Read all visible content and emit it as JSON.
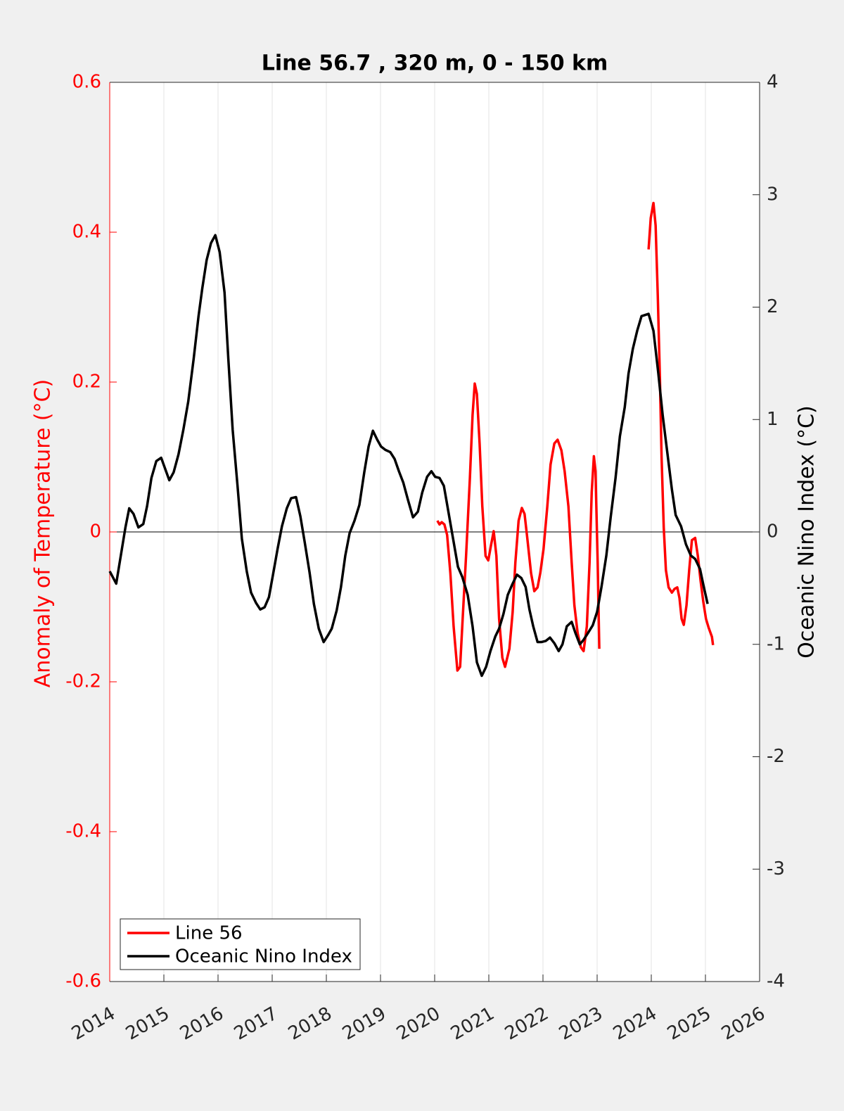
{
  "chart_data": {
    "type": "line",
    "title": "Line 56.7 , 320 m, 0 - 150 km",
    "ylabel": "Anomaly of Temperature (°C)",
    "y2label": "Oceanic Nino Index (°C)",
    "xlim": [
      2014,
      2026
    ],
    "xticks": [
      2014,
      2015,
      2016,
      2017,
      2018,
      2019,
      2020,
      2021,
      2022,
      2023,
      2024,
      2025,
      2026
    ],
    "ylim": [
      -0.6,
      0.6
    ],
    "yticks": [
      -0.6,
      -0.4,
      -0.2,
      0,
      0.2,
      0.4,
      0.6
    ],
    "y2lim": [
      -4,
      4
    ],
    "y2ticks": [
      -4,
      -3,
      -2,
      -1,
      0,
      1,
      2,
      3,
      4
    ],
    "grid": true,
    "legend": "lower left",
    "ylabel_color": "#ff0000",
    "series": [
      {
        "name": "Line 56",
        "color": "#ff0000",
        "x": [
          2020.05,
          2020.09,
          2020.13,
          2020.18,
          2020.23,
          2020.29,
          2020.35,
          2020.42,
          2020.47,
          2020.52,
          2020.58,
          2020.65,
          2020.7,
          2020.74,
          2020.78,
          2020.83,
          2020.88,
          2020.94,
          2020.99,
          2021.04,
          2021.09,
          2021.14,
          2021.19,
          2021.25,
          2021.3,
          2021.38,
          2021.44,
          2021.49,
          2021.55,
          2021.61,
          2021.66,
          2021.71,
          2021.78,
          2021.84,
          2021.9,
          2021.95,
          2022.01,
          2022.08,
          2022.14,
          2022.21,
          2022.27,
          2022.34,
          2022.4,
          2022.47,
          2022.53,
          2022.58,
          2022.64,
          2022.7,
          2022.75,
          2022.81,
          2022.86,
          2022.9,
          2022.94,
          2022.97,
          2023.01,
          2023.04,
          null,
          2023.95,
          2023.99,
          2024.04,
          2024.08,
          2024.12,
          2024.16,
          2024.19,
          2024.23,
          2024.27,
          2024.32,
          2024.38,
          2024.43,
          2024.48,
          2024.52,
          2024.56,
          2024.6,
          2024.65,
          2024.7,
          2024.75,
          2024.81,
          2024.86,
          2024.91,
          2024.96,
          2025.01,
          2025.06,
          2025.12,
          2025.14
        ],
        "values": [
          0.015,
          0.01,
          0.013,
          0.01,
          -0.004,
          -0.055,
          -0.126,
          -0.185,
          -0.18,
          -0.112,
          -0.032,
          0.071,
          0.156,
          0.198,
          0.184,
          0.118,
          0.034,
          -0.032,
          -0.038,
          -0.018,
          0.001,
          -0.032,
          -0.116,
          -0.168,
          -0.18,
          -0.156,
          -0.107,
          -0.041,
          0.015,
          0.032,
          0.024,
          -0.008,
          -0.055,
          -0.079,
          -0.074,
          -0.055,
          -0.023,
          0.034,
          0.09,
          0.118,
          0.123,
          0.109,
          0.081,
          0.034,
          -0.041,
          -0.098,
          -0.135,
          -0.154,
          -0.159,
          -0.126,
          -0.041,
          0.053,
          0.101,
          0.081,
          -0.041,
          -0.156,
          null,
          0.377,
          0.419,
          0.439,
          0.409,
          0.315,
          0.203,
          0.1,
          0.006,
          -0.051,
          -0.074,
          -0.081,
          -0.076,
          -0.074,
          -0.088,
          -0.116,
          -0.124,
          -0.098,
          -0.051,
          -0.011,
          -0.008,
          -0.032,
          -0.065,
          -0.093,
          -0.116,
          -0.128,
          -0.14,
          -0.151
        ]
      },
      {
        "name": "Oceanic Nino Index",
        "color": "#000000",
        "axis": "y2",
        "x": [
          2014,
          2014.12,
          2014.29,
          2014.36,
          2014.44,
          2014.53,
          2014.62,
          2014.69,
          2014.77,
          2014.86,
          2014.95,
          2015.04,
          2015.1,
          2015.18,
          2015.27,
          2015.36,
          2015.45,
          2015.55,
          2015.64,
          2015.71,
          2015.79,
          2015.87,
          2015.95,
          2016.03,
          2016.12,
          2016.19,
          2016.27,
          2016.36,
          2016.44,
          2016.53,
          2016.61,
          2016.7,
          2016.78,
          2016.86,
          2016.94,
          2017.03,
          2017.1,
          2017.18,
          2017.27,
          2017.35,
          2017.44,
          2017.52,
          2017.6,
          2017.69,
          2017.77,
          2017.86,
          2017.95,
          2018.03,
          2018.1,
          2018.19,
          2018.27,
          2018.35,
          2018.43,
          2018.52,
          2018.61,
          2018.7,
          2018.78,
          2018.86,
          2018.94,
          2019.01,
          2019.09,
          2019.18,
          2019.26,
          2019.34,
          2019.42,
          2019.51,
          2019.6,
          2019.69,
          2019.77,
          2019.86,
          2019.94,
          2020.01,
          2020.09,
          2020.17,
          2020.25,
          2020.34,
          2020.43,
          2020.51,
          2020.61,
          2020.7,
          2020.78,
          2020.87,
          2020.95,
          2021.03,
          2021.12,
          2021.19,
          2021.27,
          2021.35,
          2021.44,
          2021.52,
          2021.6,
          2021.68,
          2021.75,
          2021.82,
          2021.9,
          2021.97,
          2022.05,
          2022.13,
          2022.21,
          2022.29,
          2022.36,
          2022.44,
          2022.53,
          2022.6,
          2022.68,
          2022.75,
          2022.83,
          2022.92,
          2023,
          2023.08,
          2023.17,
          2023.25,
          2023.34,
          2023.42,
          2023.51,
          2023.58,
          2023.66,
          2023.74,
          2023.82,
          2023.95,
          2024.04,
          2024.13,
          2024.21,
          2024.3,
          2024.38,
          2024.45,
          2024.55,
          2024.64,
          2024.73,
          2024.81,
          2024.9,
          2024.97,
          2025.04
        ],
        "values": [
          -0.35,
          -0.46,
          0.04,
          0.21,
          0.16,
          0.04,
          0.07,
          0.23,
          0.48,
          0.63,
          0.66,
          0.54,
          0.46,
          0.53,
          0.69,
          0.91,
          1.16,
          1.54,
          1.92,
          2.17,
          2.42,
          2.57,
          2.64,
          2.49,
          2.13,
          1.54,
          0.91,
          0.41,
          -0.06,
          -0.35,
          -0.54,
          -0.63,
          -0.69,
          -0.67,
          -0.58,
          -0.34,
          -0.15,
          0.05,
          0.21,
          0.3,
          0.31,
          0.14,
          -0.09,
          -0.36,
          -0.64,
          -0.86,
          -0.98,
          -0.92,
          -0.86,
          -0.7,
          -0.49,
          -0.21,
          -0.01,
          0.1,
          0.24,
          0.53,
          0.76,
          0.9,
          0.82,
          0.76,
          0.73,
          0.71,
          0.65,
          0.54,
          0.44,
          0.28,
          0.13,
          0.18,
          0.35,
          0.49,
          0.54,
          0.49,
          0.48,
          0.41,
          0.19,
          -0.06,
          -0.31,
          -0.4,
          -0.56,
          -0.84,
          -1.16,
          -1.28,
          -1.2,
          -1.06,
          -0.93,
          -0.86,
          -0.73,
          -0.56,
          -0.46,
          -0.38,
          -0.41,
          -0.49,
          -0.69,
          -0.84,
          -0.98,
          -0.98,
          -0.97,
          -0.94,
          -0.99,
          -1.06,
          -1,
          -0.84,
          -0.8,
          -0.9,
          -1,
          -0.96,
          -0.9,
          -0.83,
          -0.71,
          -0.49,
          -0.21,
          0.13,
          0.48,
          0.85,
          1.11,
          1.41,
          1.63,
          1.79,
          1.92,
          1.94,
          1.79,
          1.41,
          1.04,
          0.69,
          0.38,
          0.15,
          0.05,
          -0.11,
          -0.21,
          -0.24,
          -0.33,
          -0.49,
          -0.64
        ]
      }
    ]
  }
}
